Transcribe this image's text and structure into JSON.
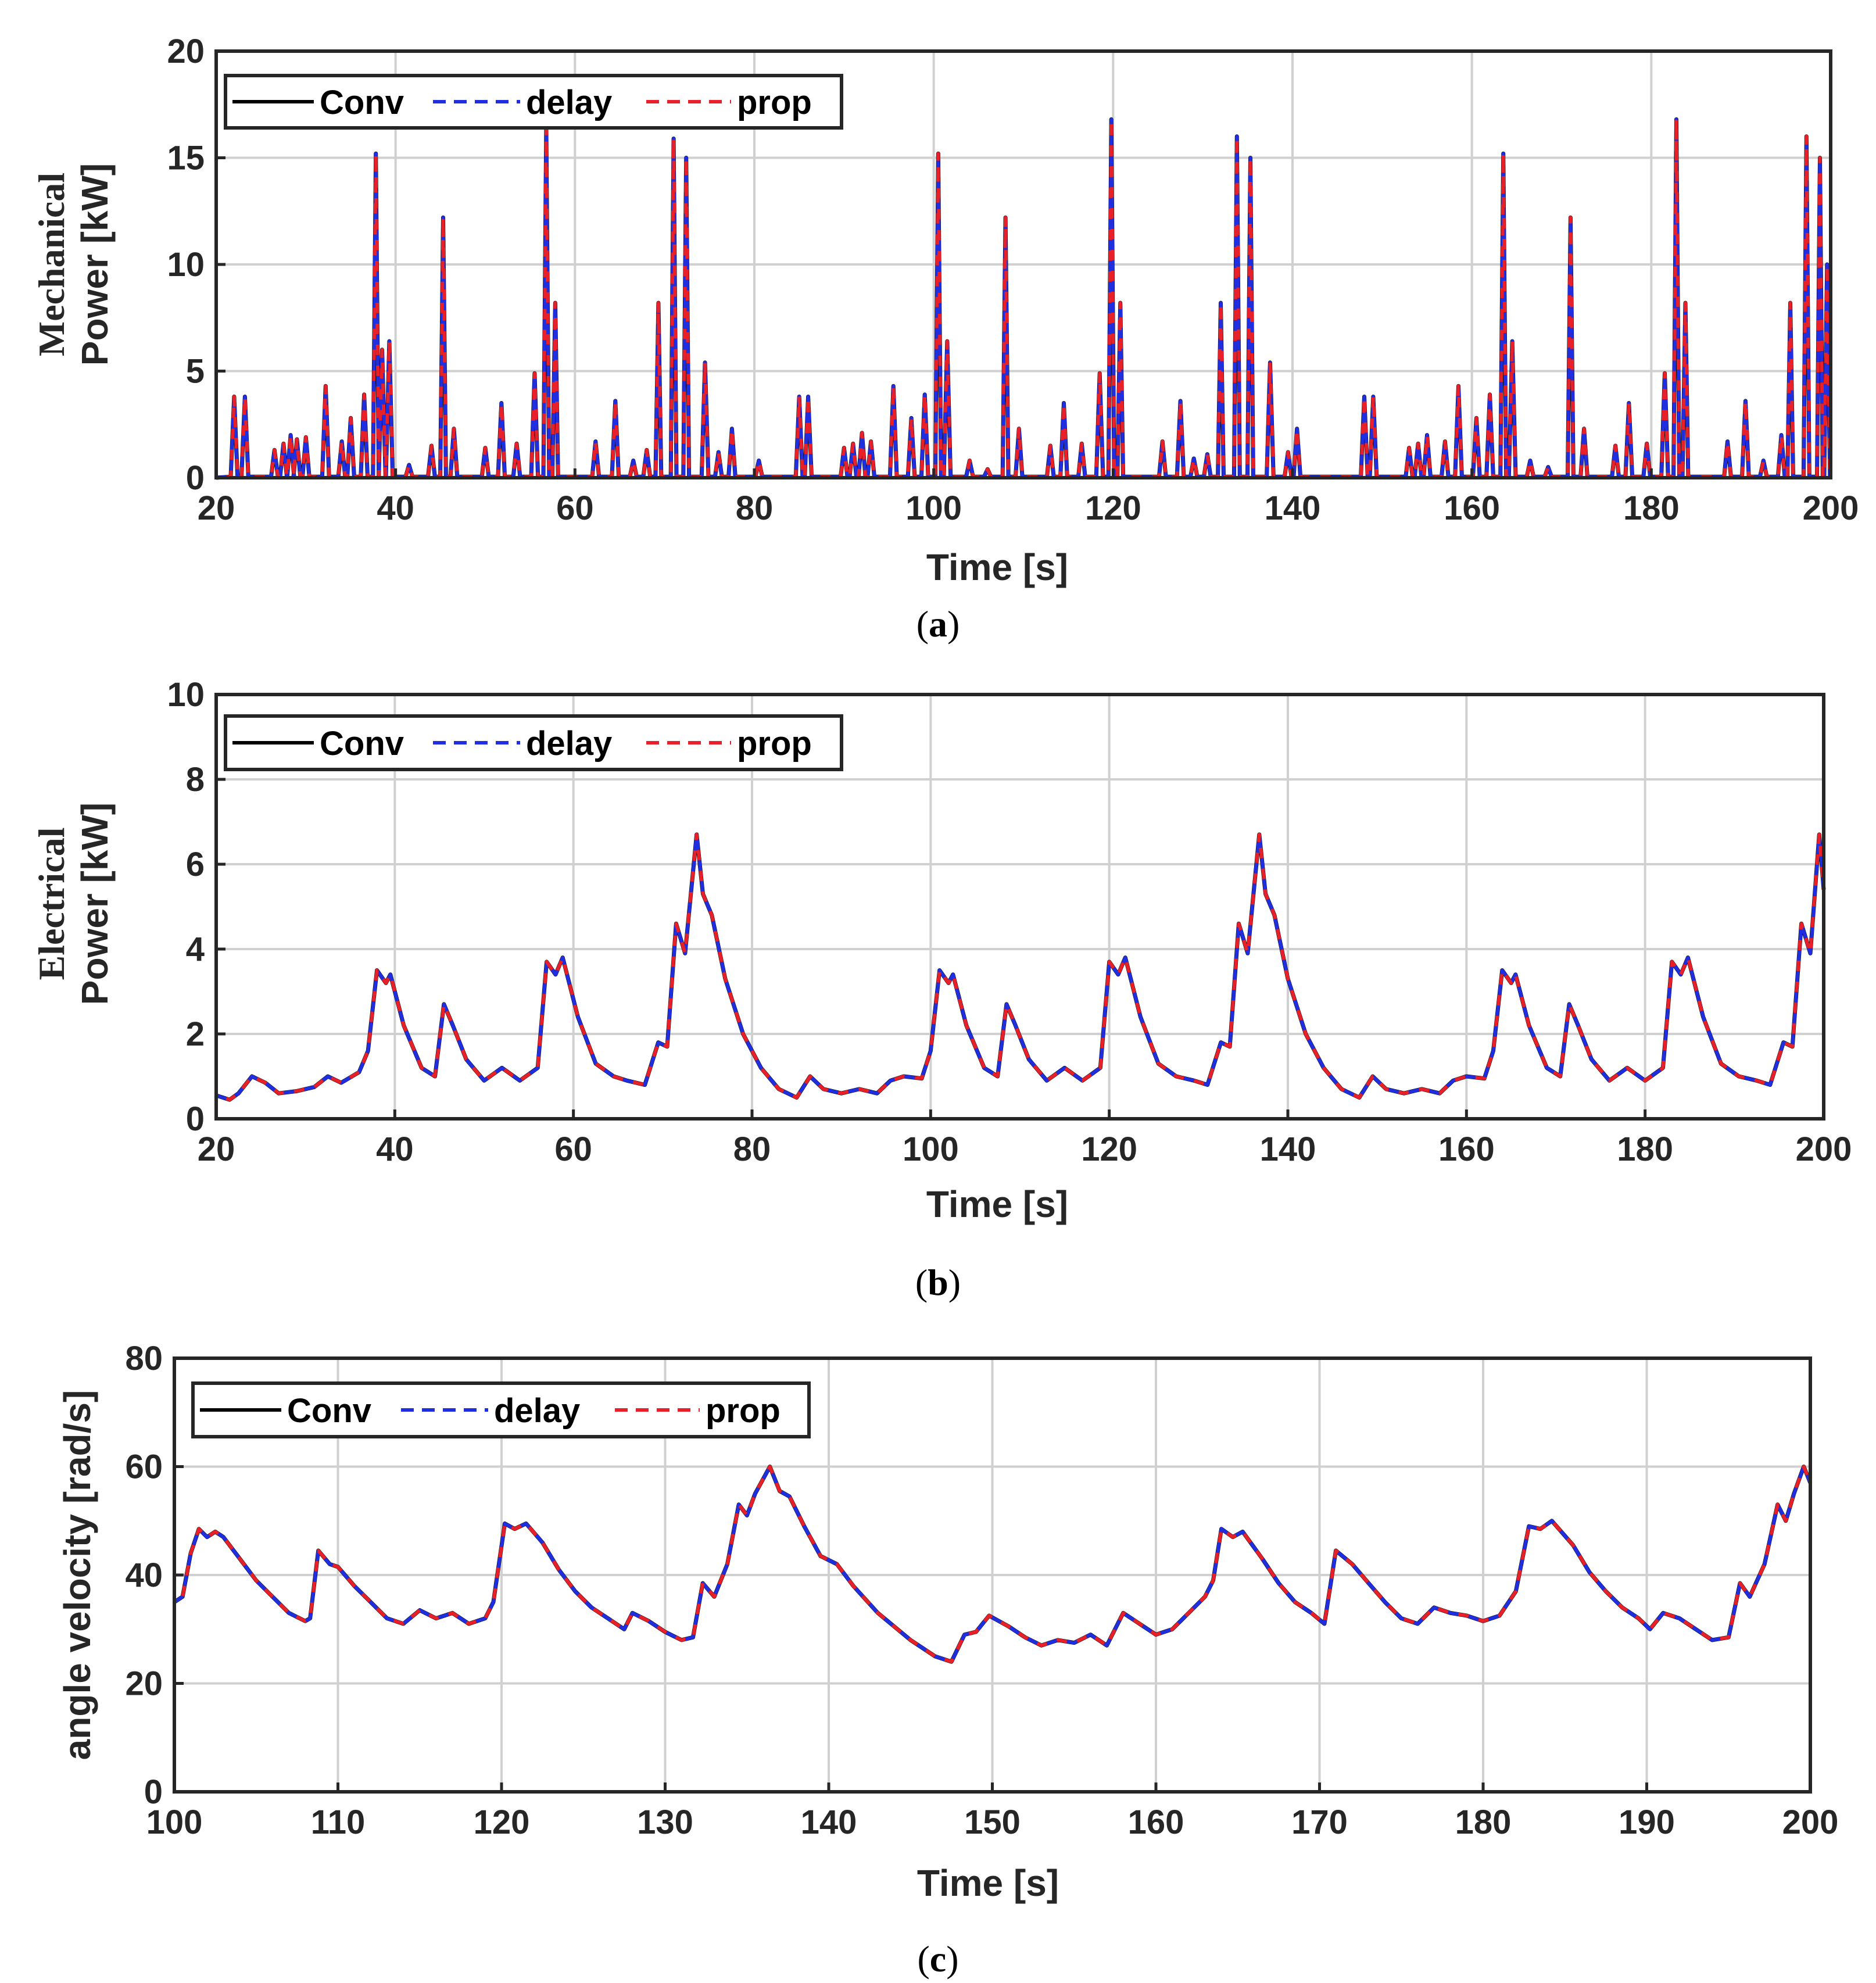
{
  "colors": {
    "conv": "#000000",
    "delay": "#1f2fe0",
    "prop": "#e8202a",
    "grid": "#d0d0d0",
    "axis": "#262626"
  },
  "chart_data": [
    {
      "type": "line",
      "caption_letter": "a",
      "title": "",
      "xlabel": "Time [s]",
      "ylabel_line1": "Mechanical",
      "ylabel_line2": "Power [kW]",
      "xlim": [
        20,
        200
      ],
      "ylim": [
        0,
        20
      ],
      "xticks": [
        "20",
        "40",
        "60",
        "80",
        "100",
        "120",
        "140",
        "160",
        "180",
        "200"
      ],
      "yticks": [
        "0",
        "5",
        "10",
        "15",
        "20"
      ],
      "grid": true,
      "legend": [
        "Conv",
        "delay",
        "prop"
      ],
      "legend_position": "top-left",
      "series_names": [
        "Conv",
        "delay",
        "prop"
      ],
      "peaks": [
        [
          22.0,
          3.8
        ],
        [
          23.2,
          3.8
        ],
        [
          26.5,
          1.3
        ],
        [
          27.5,
          1.6
        ],
        [
          28.3,
          2.0
        ],
        [
          29.0,
          1.8
        ],
        [
          30.0,
          1.9
        ],
        [
          32.2,
          4.3
        ],
        [
          34.0,
          1.7
        ],
        [
          35.0,
          2.8
        ],
        [
          36.5,
          3.9
        ],
        [
          37.8,
          15.2
        ],
        [
          38.5,
          6.0
        ],
        [
          39.3,
          6.4
        ],
        [
          41.5,
          0.6
        ],
        [
          44.0,
          1.5
        ],
        [
          45.3,
          12.2
        ],
        [
          46.5,
          2.3
        ],
        [
          50.0,
          1.4
        ],
        [
          51.8,
          3.5
        ],
        [
          53.5,
          1.6
        ],
        [
          55.5,
          4.9
        ],
        [
          56.8,
          16.4
        ],
        [
          57.8,
          8.2
        ],
        [
          62.3,
          1.7
        ],
        [
          64.5,
          3.6
        ],
        [
          66.5,
          0.8
        ],
        [
          68.0,
          1.3
        ],
        [
          69.3,
          8.2
        ],
        [
          71.0,
          15.9
        ],
        [
          72.4,
          15.0
        ],
        [
          74.5,
          5.4
        ],
        [
          76.0,
          1.2
        ],
        [
          77.5,
          2.3
        ],
        [
          80.5,
          0.8
        ],
        [
          85.0,
          3.8
        ],
        [
          86.0,
          3.8
        ],
        [
          90.0,
          1.4
        ],
        [
          91.0,
          1.6
        ],
        [
          92.0,
          2.1
        ],
        [
          93.0,
          1.7
        ],
        [
          95.5,
          4.3
        ],
        [
          97.5,
          2.8
        ],
        [
          99.0,
          3.9
        ],
        [
          100.5,
          15.2
        ],
        [
          101.5,
          6.4
        ],
        [
          104.0,
          0.8
        ],
        [
          106.0,
          0.4
        ],
        [
          108.0,
          12.2
        ],
        [
          109.5,
          2.3
        ],
        [
          113.0,
          1.5
        ],
        [
          114.5,
          3.5
        ],
        [
          116.5,
          1.6
        ],
        [
          118.5,
          4.9
        ],
        [
          119.8,
          16.8
        ],
        [
          120.8,
          8.2
        ],
        [
          125.5,
          1.7
        ],
        [
          127.5,
          3.6
        ],
        [
          129.0,
          0.9
        ],
        [
          130.5,
          1.1
        ],
        [
          132.0,
          8.2
        ],
        [
          133.8,
          16.0
        ],
        [
          135.3,
          15.0
        ],
        [
          137.5,
          5.4
        ],
        [
          139.5,
          1.2
        ],
        [
          140.5,
          2.3
        ],
        [
          148.0,
          3.8
        ],
        [
          149.0,
          3.8
        ],
        [
          153.0,
          1.4
        ],
        [
          154.0,
          1.6
        ],
        [
          155.0,
          2.0
        ],
        [
          157.0,
          1.7
        ],
        [
          158.5,
          4.3
        ],
        [
          160.5,
          2.8
        ],
        [
          162.0,
          3.9
        ],
        [
          163.5,
          15.2
        ],
        [
          164.5,
          6.4
        ],
        [
          166.5,
          0.8
        ],
        [
          168.5,
          0.5
        ],
        [
          171.0,
          12.2
        ],
        [
          172.5,
          2.3
        ],
        [
          176.0,
          1.5
        ],
        [
          177.5,
          3.5
        ],
        [
          179.5,
          1.6
        ],
        [
          181.5,
          4.9
        ],
        [
          182.8,
          16.8
        ],
        [
          183.8,
          8.2
        ],
        [
          188.5,
          1.7
        ],
        [
          190.5,
          3.6
        ],
        [
          192.5,
          0.8
        ],
        [
          194.5,
          2.0
        ],
        [
          195.5,
          8.2
        ],
        [
          197.3,
          16.0
        ],
        [
          198.8,
          15.0
        ],
        [
          199.6,
          10.0
        ]
      ]
    },
    {
      "type": "line",
      "caption_letter": "b",
      "title": "",
      "xlabel": "Time [s]",
      "ylabel_line1": "Electrical",
      "ylabel_line2": "Power [kW]",
      "xlim": [
        20,
        200
      ],
      "ylim": [
        0,
        10
      ],
      "xticks": [
        "20",
        "40",
        "60",
        "80",
        "100",
        "120",
        "140",
        "160",
        "180",
        "200"
      ],
      "yticks": [
        "0",
        "2",
        "4",
        "6",
        "8",
        "10"
      ],
      "grid": true,
      "legend": [
        "Conv",
        "delay",
        "prop"
      ],
      "legend_position": "top-left",
      "series_names": [
        "Conv",
        "delay",
        "prop"
      ],
      "points": [
        [
          20,
          0.55
        ],
        [
          21.5,
          0.45
        ],
        [
          22.5,
          0.6
        ],
        [
          24,
          1.0
        ],
        [
          25.5,
          0.85
        ],
        [
          27,
          0.6
        ],
        [
          29,
          0.65
        ],
        [
          31,
          0.75
        ],
        [
          32.5,
          1.0
        ],
        [
          34,
          0.85
        ],
        [
          36,
          1.1
        ],
        [
          37,
          1.6
        ],
        [
          38,
          3.5
        ],
        [
          39,
          3.2
        ],
        [
          39.5,
          3.4
        ],
        [
          41,
          2.2
        ],
        [
          43,
          1.2
        ],
        [
          44.5,
          1.0
        ],
        [
          45.5,
          2.7
        ],
        [
          46.5,
          2.2
        ],
        [
          48,
          1.4
        ],
        [
          50,
          0.9
        ],
        [
          52,
          1.2
        ],
        [
          54,
          0.9
        ],
        [
          56,
          1.2
        ],
        [
          57,
          3.7
        ],
        [
          58,
          3.4
        ],
        [
          58.8,
          3.8
        ],
        [
          60.5,
          2.4
        ],
        [
          62.5,
          1.3
        ],
        [
          64.5,
          1.0
        ],
        [
          66,
          0.9
        ],
        [
          68,
          0.8
        ],
        [
          69.5,
          1.8
        ],
        [
          70.5,
          1.7
        ],
        [
          71.5,
          4.6
        ],
        [
          72.5,
          3.9
        ],
        [
          73.8,
          6.7
        ],
        [
          74.5,
          5.3
        ],
        [
          75.5,
          4.8
        ],
        [
          77,
          3.3
        ],
        [
          79,
          2.0
        ],
        [
          81,
          1.2
        ],
        [
          83,
          0.7
        ],
        [
          85,
          0.5
        ],
        [
          86.5,
          1.0
        ],
        [
          88,
          0.7
        ],
        [
          90,
          0.6
        ],
        [
          92,
          0.7
        ],
        [
          94,
          0.6
        ],
        [
          95.5,
          0.9
        ],
        [
          97,
          1.0
        ],
        [
          99,
          0.95
        ],
        [
          100,
          1.6
        ],
        [
          101,
          3.5
        ],
        [
          102,
          3.2
        ],
        [
          102.5,
          3.4
        ],
        [
          104,
          2.2
        ],
        [
          106,
          1.2
        ],
        [
          107.5,
          1.0
        ],
        [
          108.5,
          2.7
        ],
        [
          109.5,
          2.2
        ],
        [
          111,
          1.4
        ],
        [
          113,
          0.9
        ],
        [
          115,
          1.2
        ],
        [
          117,
          0.9
        ],
        [
          119,
          1.2
        ],
        [
          120,
          3.7
        ],
        [
          121,
          3.4
        ],
        [
          121.8,
          3.8
        ],
        [
          123.5,
          2.4
        ],
        [
          125.5,
          1.3
        ],
        [
          127.5,
          1.0
        ],
        [
          129.5,
          0.9
        ],
        [
          131,
          0.8
        ],
        [
          132.5,
          1.8
        ],
        [
          133.5,
          1.7
        ],
        [
          134.5,
          4.6
        ],
        [
          135.5,
          3.9
        ],
        [
          136.8,
          6.7
        ],
        [
          137.5,
          5.3
        ],
        [
          138.5,
          4.8
        ],
        [
          140,
          3.3
        ],
        [
          142,
          2.0
        ],
        [
          144,
          1.2
        ],
        [
          146,
          0.7
        ],
        [
          148,
          0.5
        ],
        [
          149.5,
          1.0
        ],
        [
          151,
          0.7
        ],
        [
          153,
          0.6
        ],
        [
          155,
          0.7
        ],
        [
          157,
          0.6
        ],
        [
          158.5,
          0.9
        ],
        [
          160,
          1.0
        ],
        [
          162,
          0.95
        ],
        [
          163,
          1.6
        ],
        [
          164,
          3.5
        ],
        [
          165,
          3.2
        ],
        [
          165.5,
          3.4
        ],
        [
          167,
          2.2
        ],
        [
          169,
          1.2
        ],
        [
          170.5,
          1.0
        ],
        [
          171.5,
          2.7
        ],
        [
          172.5,
          2.2
        ],
        [
          174,
          1.4
        ],
        [
          176,
          0.9
        ],
        [
          178,
          1.2
        ],
        [
          180,
          0.9
        ],
        [
          182,
          1.2
        ],
        [
          183,
          3.7
        ],
        [
          184,
          3.4
        ],
        [
          184.8,
          3.8
        ],
        [
          186.5,
          2.4
        ],
        [
          188.5,
          1.3
        ],
        [
          190.5,
          1.0
        ],
        [
          192.5,
          0.9
        ],
        [
          194,
          0.8
        ],
        [
          195.5,
          1.8
        ],
        [
          196.5,
          1.7
        ],
        [
          197.5,
          4.6
        ],
        [
          198.5,
          3.9
        ],
        [
          199.5,
          6.7
        ],
        [
          200,
          5.4
        ]
      ]
    },
    {
      "type": "line",
      "caption_letter": "c",
      "title": "",
      "xlabel": "Time [s]",
      "ylabel_line1": "angle velocity [rad/s]",
      "ylabel_line2": "",
      "xlim": [
        100,
        200
      ],
      "ylim": [
        0,
        80
      ],
      "xticks": [
        "100",
        "110",
        "120",
        "130",
        "140",
        "150",
        "160",
        "170",
        "180",
        "190",
        "200"
      ],
      "yticks": [
        "0",
        "20",
        "40",
        "60",
        "80"
      ],
      "grid": true,
      "legend": [
        "Conv",
        "delay",
        "prop"
      ],
      "legend_position": "top-left",
      "series_names": [
        "Conv",
        "delay",
        "prop"
      ],
      "points": [
        [
          100,
          35
        ],
        [
          100.5,
          36
        ],
        [
          101,
          44
        ],
        [
          101.5,
          48.5
        ],
        [
          102,
          47
        ],
        [
          102.5,
          48
        ],
        [
          103,
          47
        ],
        [
          104,
          43
        ],
        [
          105,
          39
        ],
        [
          106,
          36
        ],
        [
          107,
          33
        ],
        [
          108,
          31.5
        ],
        [
          108.3,
          32
        ],
        [
          108.8,
          44.5
        ],
        [
          109.5,
          42
        ],
        [
          110,
          41.5
        ],
        [
          111,
          38
        ],
        [
          112,
          35
        ],
        [
          113,
          32
        ],
        [
          114,
          31
        ],
        [
          115,
          33.5
        ],
        [
          116,
          32
        ],
        [
          117,
          33
        ],
        [
          118,
          31
        ],
        [
          119,
          32
        ],
        [
          119.5,
          35
        ],
        [
          120.2,
          49.5
        ],
        [
          120.8,
          48.5
        ],
        [
          121.5,
          49.5
        ],
        [
          122.5,
          46
        ],
        [
          123.5,
          41
        ],
        [
          124.5,
          37
        ],
        [
          125.5,
          34
        ],
        [
          126.5,
          32
        ],
        [
          127.5,
          30
        ],
        [
          128,
          33
        ],
        [
          129,
          31.5
        ],
        [
          130,
          29.5
        ],
        [
          131,
          28
        ],
        [
          131.7,
          28.5
        ],
        [
          132.3,
          38.5
        ],
        [
          133,
          36
        ],
        [
          133.8,
          42
        ],
        [
          134.5,
          53
        ],
        [
          135,
          51
        ],
        [
          135.5,
          55
        ],
        [
          136.4,
          60
        ],
        [
          137,
          55.5
        ],
        [
          137.6,
          54.5
        ],
        [
          138.5,
          49
        ],
        [
          139.5,
          43.5
        ],
        [
          140.5,
          42
        ],
        [
          141.5,
          38
        ],
        [
          143,
          33
        ],
        [
          145,
          28
        ],
        [
          146.5,
          25
        ],
        [
          147.5,
          24
        ],
        [
          148.3,
          29
        ],
        [
          149,
          29.5
        ],
        [
          149.8,
          32.5
        ],
        [
          151,
          30.5
        ],
        [
          152,
          28.5
        ],
        [
          153,
          27
        ],
        [
          154,
          28
        ],
        [
          155,
          27.5
        ],
        [
          156,
          29
        ],
        [
          157,
          27
        ],
        [
          158,
          33
        ],
        [
          159,
          31
        ],
        [
          160,
          29
        ],
        [
          161,
          30
        ],
        [
          162,
          33
        ],
        [
          163,
          36
        ],
        [
          163.5,
          39
        ],
        [
          164,
          48.5
        ],
        [
          164.7,
          47
        ],
        [
          165.3,
          48
        ],
        [
          166.5,
          43
        ],
        [
          167.5,
          38.5
        ],
        [
          168.5,
          35
        ],
        [
          169.5,
          33
        ],
        [
          170.3,
          31
        ],
        [
          171,
          44.5
        ],
        [
          172,
          42
        ],
        [
          173,
          38.5
        ],
        [
          174,
          35
        ],
        [
          175,
          32
        ],
        [
          176,
          31
        ],
        [
          177,
          34
        ],
        [
          178,
          33
        ],
        [
          179,
          32.5
        ],
        [
          180,
          31.5
        ],
        [
          181,
          32.5
        ],
        [
          182,
          37
        ],
        [
          182.8,
          49
        ],
        [
          183.5,
          48.5
        ],
        [
          184.2,
          50
        ],
        [
          185.5,
          45.5
        ],
        [
          186.5,
          40.5
        ],
        [
          187.5,
          37
        ],
        [
          188.5,
          34
        ],
        [
          189.5,
          32
        ],
        [
          190.2,
          30
        ],
        [
          191,
          33
        ],
        [
          192,
          32
        ],
        [
          193,
          30
        ],
        [
          194,
          28
        ],
        [
          195,
          28.5
        ],
        [
          195.7,
          38.5
        ],
        [
          196.3,
          36
        ],
        [
          197.2,
          42
        ],
        [
          198,
          53
        ],
        [
          198.5,
          50
        ],
        [
          199,
          55
        ],
        [
          199.6,
          60
        ],
        [
          200,
          57
        ]
      ]
    }
  ]
}
